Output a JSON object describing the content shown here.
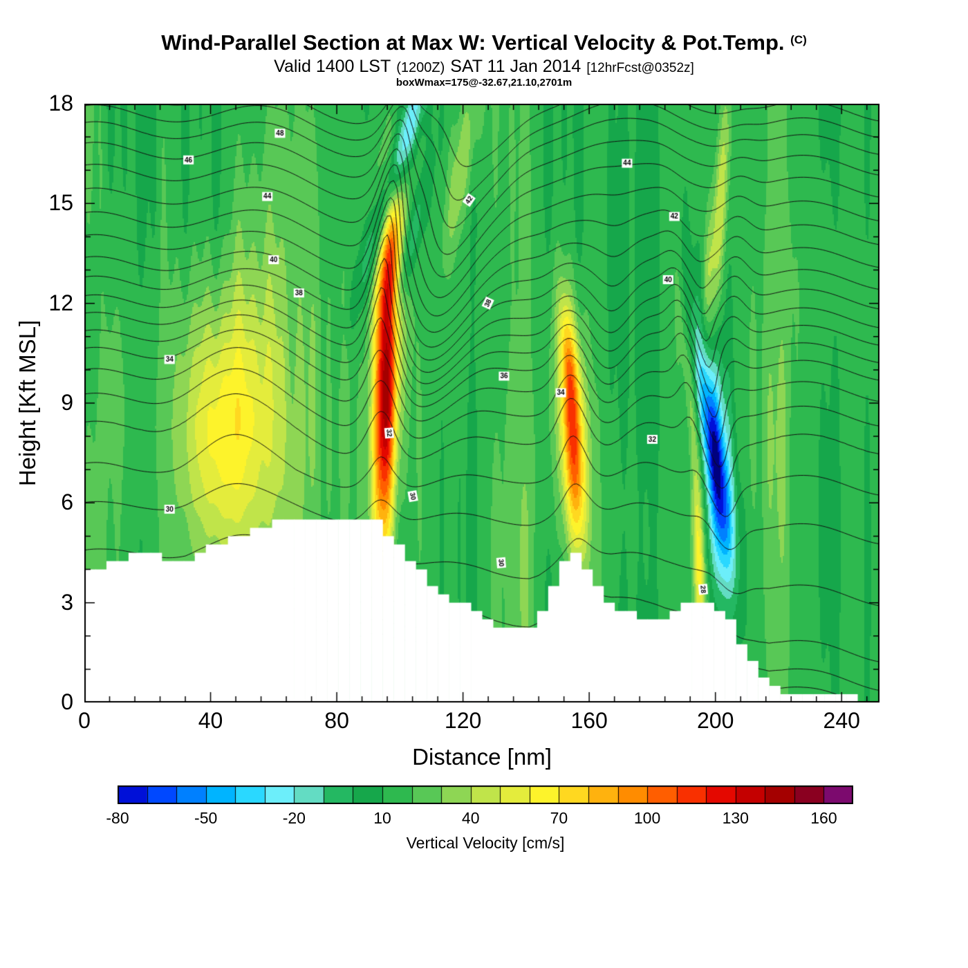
{
  "header": {
    "title": "Wind-Parallel Section at Max W: Vertical Velocity & Pot.Temp.",
    "title_suffix": "(C)",
    "valid_a": "Valid 1400 LST",
    "valid_paren": "(1200Z)",
    "valid_b": "SAT 11 Jan 2014",
    "valid_bracket": "[12hrFcst@0352z]",
    "subtitle2": "boxWmax=175@-32.67,21.10,2701m"
  },
  "chart_data": {
    "type": "heatmap",
    "title": "Wind-Parallel Section at Max W: Vertical Velocity & Pot.Temp. (C)",
    "xlabel": "Distance [nm]",
    "ylabel": "Height [Kft MSL]",
    "xlim": [
      0,
      252
    ],
    "ylim": [
      0,
      18
    ],
    "xticks": [
      0,
      40,
      80,
      120,
      160,
      200,
      240
    ],
    "yticks": [
      0,
      3,
      6,
      9,
      12,
      15,
      18
    ],
    "grid": false,
    "colorbar": {
      "label": "Vertical Velocity [cm/s]",
      "tick_values": [
        -80,
        -50,
        -20,
        10,
        40,
        70,
        100,
        130,
        160
      ],
      "min": -80,
      "max": 170,
      "step": 10,
      "bin_start": -90,
      "bin_colors": [
        "#000080",
        "#0010d8",
        "#0048ff",
        "#0080ff",
        "#00b4ff",
        "#2ad8ff",
        "#6ceefa",
        "#63dcc3",
        "#24b862",
        "#16a74b",
        "#2eb94f",
        "#58c856",
        "#8ed654",
        "#c0e44a",
        "#e4ec3c",
        "#fdf32b",
        "#ffd820",
        "#ffb20e",
        "#ff8c00",
        "#ff5e00",
        "#f93000",
        "#e40800",
        "#c40000",
        "#a40000",
        "#8a0020",
        "#7c0a6e",
        "#5a005a"
      ]
    },
    "field": {
      "description": "Vertical velocity (cm/s): broad green background ~10, yellow updraft near x=45, intense red updraft plume at x=95 (max ~175), tilted cyan band above it, orange updraft at x=155, strong blue downdraft at x=200, thin yellow streaks near x=195 and aloft near x=200.",
      "base": 12,
      "noise": [
        [
          4,
          0.55,
          0
        ],
        [
          5,
          0.23,
          1.7
        ],
        [
          3,
          1.31,
          0.4
        ],
        [
          4,
          0.09,
          2.2
        ]
      ],
      "features": [
        {
          "amp": 42,
          "cx": 45,
          "cz": 8.3,
          "sx": 10,
          "sz": 2.8
        },
        {
          "amp": 15,
          "cx": 45,
          "cz": 8.0,
          "sx": 16,
          "sz": 4.5
        },
        {
          "amp": 100,
          "cx": 95.5,
          "cz": 9.2,
          "sx": 2.4,
          "sz": 3.2,
          "tilt": 0.2
        },
        {
          "amp": 40,
          "cx": 95.5,
          "cz": 9.5,
          "sx": 4.8,
          "sz": 4.5,
          "tilt": 0.3
        },
        {
          "amp": 42,
          "cx": 97.5,
          "cz": 13.8,
          "sx": 2.4,
          "sz": 1.8,
          "tilt": 0.8
        },
        {
          "amp": -52,
          "cx": 99.5,
          "cz": 16.2,
          "sx": 2.6,
          "sz": 2.4,
          "tilt": 3.0
        },
        {
          "amp": -26,
          "cx": 103,
          "cz": 13.6,
          "sx": 2.0,
          "sz": 1.6,
          "tilt": 2.2
        },
        {
          "amp": 28,
          "cx": 120,
          "cz": 16.3,
          "sx": 2.6,
          "sz": 2.2,
          "tilt": 1.6
        },
        {
          "amp": 70,
          "cx": 155,
          "cz": 7.6,
          "sx": 2.3,
          "sz": 2.1,
          "tilt": -0.5
        },
        {
          "amp": 30,
          "cx": 155,
          "cz": 8.2,
          "sx": 4.6,
          "sz": 3.2,
          "tilt": -0.5
        },
        {
          "amp": 34,
          "cx": 153.5,
          "cz": 10.3,
          "sx": 1.8,
          "sz": 1.4,
          "tilt": -0.8
        },
        {
          "amp": -65,
          "cx": 199.5,
          "cz": 7.6,
          "sx": 2.3,
          "sz": 2.0,
          "tilt": -1.3
        },
        {
          "amp": -30,
          "cx": 199.5,
          "cz": 8.2,
          "sx": 4.2,
          "sz": 3.2,
          "tilt": -1.3
        },
        {
          "amp": -24,
          "cx": 201,
          "cz": 5.0,
          "sx": 3.0,
          "sz": 1.6,
          "tilt": -0.5
        },
        {
          "amp": 55,
          "cx": 194.8,
          "cz": 4.2,
          "sx": 1.3,
          "sz": 2.0,
          "tilt": -0.3
        },
        {
          "amp": 24,
          "cx": 192,
          "cz": 9.3,
          "sx": 1.4,
          "sz": 2.0,
          "tilt": -1.0
        },
        {
          "amp": 38,
          "cx": 201.5,
          "cz": 14.8,
          "sx": 1.5,
          "sz": 2.6,
          "tilt": 0.6
        },
        {
          "amp": 20,
          "cx": 197.5,
          "cz": 12.8,
          "sx": 1.2,
          "sz": 1.5,
          "tilt": 0.6
        },
        {
          "amp": 14,
          "cx": 67,
          "cz": 9,
          "sx": 7,
          "sz": 9
        },
        {
          "amp": 12,
          "cx": 9,
          "cz": 7,
          "sx": 4,
          "sz": 6
        },
        {
          "amp": 13,
          "cx": 222,
          "cz": 8,
          "sx": 8,
          "sz": 8
        },
        {
          "amp": 12,
          "cx": 138,
          "cz": 6,
          "sx": 5,
          "sz": 5
        }
      ]
    },
    "terrain_profile": [
      [
        0,
        3.9
      ],
      [
        6,
        4.05
      ],
      [
        12,
        4.35
      ],
      [
        20,
        4.5
      ],
      [
        26,
        4.3
      ],
      [
        32,
        4.15
      ],
      [
        36,
        4.5
      ],
      [
        42,
        4.7
      ],
      [
        48,
        5.0
      ],
      [
        56,
        5.3
      ],
      [
        64,
        5.45
      ],
      [
        72,
        5.5
      ],
      [
        80,
        5.5
      ],
      [
        86,
        5.6
      ],
      [
        92,
        5.45
      ],
      [
        96,
        5.1
      ],
      [
        100,
        4.7
      ],
      [
        104,
        4.25
      ],
      [
        108,
        3.8
      ],
      [
        112,
        3.45
      ],
      [
        118,
        3.05
      ],
      [
        124,
        2.7
      ],
      [
        130,
        2.35
      ],
      [
        136,
        2.2
      ],
      [
        141,
        2.15
      ],
      [
        144,
        2.5
      ],
      [
        147,
        3.2
      ],
      [
        150,
        3.9
      ],
      [
        153,
        4.45
      ],
      [
        156,
        4.4
      ],
      [
        159,
        4.0
      ],
      [
        163,
        3.45
      ],
      [
        167,
        3.0
      ],
      [
        172,
        2.75
      ],
      [
        178,
        2.55
      ],
      [
        184,
        2.55
      ],
      [
        189,
        2.8
      ],
      [
        194,
        3.05
      ],
      [
        198,
        3.05
      ],
      [
        202,
        2.75
      ],
      [
        205,
        2.35
      ],
      [
        208,
        1.8
      ],
      [
        211,
        1.3
      ],
      [
        214,
        0.8
      ],
      [
        217,
        0.45
      ],
      [
        221,
        0.3
      ],
      [
        228,
        0.2
      ],
      [
        240,
        0.15
      ],
      [
        252,
        0.1
      ]
    ],
    "theta": {
      "units": "C",
      "profile": [
        [
          -3,
          20
        ],
        [
          0,
          25.5
        ],
        [
          1,
          27.3
        ],
        [
          2,
          28.3
        ],
        [
          4,
          29.3
        ],
        [
          6,
          30.4
        ],
        [
          8,
          32.0
        ],
        [
          9,
          33.2
        ],
        [
          10,
          34.6
        ],
        [
          11,
          36.5
        ],
        [
          12,
          38.4
        ],
        [
          13,
          40.1
        ],
        [
          14,
          41.6
        ],
        [
          15,
          43.0
        ],
        [
          16,
          44.4
        ],
        [
          17,
          46.0
        ],
        [
          18,
          48.0
        ],
        [
          21,
          53
        ]
      ],
      "levels": [
        26,
        27,
        28,
        29,
        30,
        31,
        32,
        33,
        34,
        35,
        36,
        37,
        38,
        39,
        40,
        41,
        42,
        43,
        44,
        45,
        46,
        47,
        48
      ],
      "background_wave": [
        [
          0.35,
          0.11,
          1.5
        ],
        [
          0.3,
          0.045,
          0.3
        ]
      ],
      "terrain_follow": {
        "k": 0.55,
        "zmax": 7
      },
      "eta_features": [
        {
          "amp": 1.6,
          "cx": 95,
          "cz": 9.5,
          "sx": 4.5,
          "sz": 4.0,
          "tilt": 0.3
        },
        {
          "amp": 2.2,
          "cx": 97,
          "cz": 15,
          "sx": 3,
          "sz": 2.5,
          "tilt": 1.2
        },
        {
          "amp": -3.0,
          "cx": 114,
          "cz": 13,
          "sx": 8,
          "sz": 3.2,
          "tilt": 1.5
        },
        {
          "amp": -0.7,
          "cx": 130,
          "cz": 16,
          "sx": 6,
          "sz": 2.5,
          "tilt": 1.5
        },
        {
          "amp": 1.0,
          "cx": 45,
          "cz": 8.5,
          "sx": 11,
          "sz": 3
        },
        {
          "amp": 1.3,
          "cx": 155,
          "cz": 8,
          "sx": 4,
          "sz": 2.8,
          "tilt": -0.5
        },
        {
          "amp": -1.3,
          "cx": 167,
          "cz": 10.5,
          "sx": 6,
          "sz": 3,
          "tilt": 0.5
        },
        {
          "amp": -1.8,
          "cx": 199.5,
          "cz": 8,
          "sx": 3.5,
          "sz": 2.8,
          "tilt": -1.3
        },
        {
          "amp": 1.2,
          "cx": 192,
          "cz": 10,
          "sx": 3.5,
          "sz": 2.8,
          "tilt": -1.3
        },
        {
          "amp": 0.8,
          "cx": 206,
          "cz": 13,
          "sx": 4,
          "sz": 2.5,
          "tilt": 0.5
        }
      ],
      "labels": [
        {
          "v": 48,
          "x": 62,
          "z": 17.1
        },
        {
          "v": 46,
          "x": 33,
          "z": 16.3
        },
        {
          "v": 44,
          "x": 58,
          "z": 15.2
        },
        {
          "v": 44,
          "x": 172,
          "z": 16.2
        },
        {
          "v": 42,
          "x": 122,
          "z": 15.1,
          "rot": -55
        },
        {
          "v": 42,
          "x": 187,
          "z": 14.6
        },
        {
          "v": 40,
          "x": 60,
          "z": 13.3
        },
        {
          "v": 40,
          "x": 185,
          "z": 12.7
        },
        {
          "v": 38,
          "x": 68,
          "z": 12.3
        },
        {
          "v": 38,
          "x": 128,
          "z": 12.0,
          "rot": -65
        },
        {
          "v": 36,
          "x": 133,
          "z": 9.8
        },
        {
          "v": 34,
          "x": 151,
          "z": 9.3
        },
        {
          "v": 34,
          "x": 27,
          "z": 10.3
        },
        {
          "v": 32,
          "x": 96.5,
          "z": 8.1,
          "rot": 85
        },
        {
          "v": 30,
          "x": 104,
          "z": 6.2,
          "rot": 80
        },
        {
          "v": 32,
          "x": 180,
          "z": 7.9
        },
        {
          "v": 30,
          "x": 27,
          "z": 5.8
        },
        {
          "v": 30,
          "x": 132,
          "z": 4.2,
          "rot": 85
        },
        {
          "v": 28,
          "x": 196,
          "z": 3.4,
          "rot": 85
        }
      ]
    }
  }
}
